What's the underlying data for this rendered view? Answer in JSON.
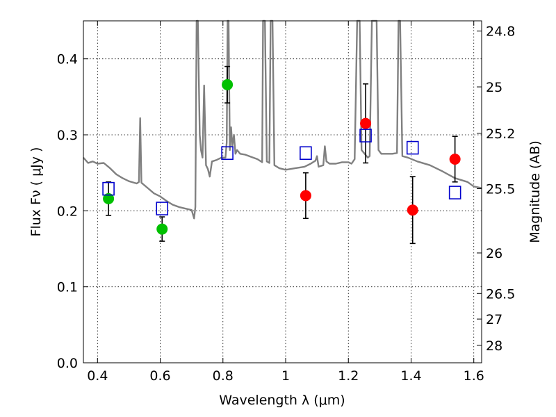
{
  "chart_data": {
    "type": "scatter",
    "xlabel": "Wavelength  λ (μm)",
    "ylabel": "Flux  Fν  ( μJy )",
    "y2label": "Magnitude (AB)",
    "xlim": [
      0.355,
      1.625
    ],
    "ylim": [
      0.0,
      0.45
    ],
    "grid": true,
    "x_ticks": [
      0.4,
      0.6,
      0.8,
      1.0,
      1.2,
      1.4,
      1.6
    ],
    "x_tick_labels": [
      "0.4",
      "0.6",
      "0.8",
      "1",
      "1.2",
      "1.4",
      "1.6"
    ],
    "y_ticks": [
      0.0,
      0.1,
      0.2,
      0.3,
      0.4
    ],
    "y_tick_labels": [
      "0.0",
      "0.1",
      "0.2",
      "0.3",
      "0.4"
    ],
    "y2_ticks": [
      "24.8",
      "25",
      "25.2",
      "25.5",
      "26",
      "26.5",
      "27",
      "28"
    ],
    "colors": {
      "green": "#00c000",
      "red": "#ff0000",
      "blue_square": "#0000cc",
      "spectrum": "#808080",
      "errorbar": "#000000"
    },
    "series": [
      {
        "marker": "circle",
        "color": "#00c000",
        "points": [
          {
            "x": 0.435,
            "y": 0.216,
            "err": 0.022
          },
          {
            "x": 0.606,
            "y": 0.176,
            "err": 0.016
          },
          {
            "x": 0.814,
            "y": 0.366,
            "err": 0.024
          }
        ]
      },
      {
        "marker": "circle",
        "color": "#ff0000",
        "points": [
          {
            "x": 1.064,
            "y": 0.22,
            "err": 0.03
          },
          {
            "x": 1.255,
            "y": 0.315,
            "err": 0.052
          },
          {
            "x": 1.405,
            "y": 0.201,
            "err": 0.044
          },
          {
            "x": 1.54,
            "y": 0.268,
            "err": 0.03
          }
        ]
      },
      {
        "marker": "square-open",
        "color": "#0000cc",
        "points": [
          {
            "x": 0.435,
            "y": 0.229
          },
          {
            "x": 0.606,
            "y": 0.203
          },
          {
            "x": 0.814,
            "y": 0.276
          },
          {
            "x": 1.064,
            "y": 0.276
          },
          {
            "x": 1.255,
            "y": 0.299
          },
          {
            "x": 1.405,
            "y": 0.283
          },
          {
            "x": 1.54,
            "y": 0.224
          }
        ]
      }
    ],
    "spectrum": {
      "color": "#808080",
      "points": [
        [
          0.355,
          0.27
        ],
        [
          0.37,
          0.263
        ],
        [
          0.385,
          0.265
        ],
        [
          0.4,
          0.262
        ],
        [
          0.42,
          0.263
        ],
        [
          0.44,
          0.256
        ],
        [
          0.46,
          0.248
        ],
        [
          0.48,
          0.243
        ],
        [
          0.5,
          0.239
        ],
        [
          0.525,
          0.236
        ],
        [
          0.532,
          0.238
        ],
        [
          0.536,
          0.322
        ],
        [
          0.54,
          0.237
        ],
        [
          0.56,
          0.23
        ],
        [
          0.58,
          0.223
        ],
        [
          0.6,
          0.219
        ],
        [
          0.62,
          0.213
        ],
        [
          0.64,
          0.208
        ],
        [
          0.66,
          0.205
        ],
        [
          0.68,
          0.203
        ],
        [
          0.7,
          0.201
        ],
        [
          0.708,
          0.19
        ],
        [
          0.712,
          0.205
        ],
        [
          0.716,
          0.45
        ],
        [
          0.72,
          0.45
        ],
        [
          0.726,
          0.3
        ],
        [
          0.73,
          0.28
        ],
        [
          0.735,
          0.27
        ],
        [
          0.74,
          0.365
        ],
        [
          0.746,
          0.26
        ],
        [
          0.752,
          0.255
        ],
        [
          0.758,
          0.245
        ],
        [
          0.765,
          0.265
        ],
        [
          0.78,
          0.267
        ],
        [
          0.795,
          0.27
        ],
        [
          0.808,
          0.27
        ],
        [
          0.812,
          0.29
        ],
        [
          0.815,
          0.45
        ],
        [
          0.818,
          0.45
        ],
        [
          0.822,
          0.28
        ],
        [
          0.826,
          0.31
        ],
        [
          0.83,
          0.285
        ],
        [
          0.835,
          0.3
        ],
        [
          0.84,
          0.275
        ],
        [
          0.845,
          0.28
        ],
        [
          0.855,
          0.275
        ],
        [
          0.87,
          0.274
        ],
        [
          0.89,
          0.271
        ],
        [
          0.91,
          0.268
        ],
        [
          0.925,
          0.264
        ],
        [
          0.928,
          0.45
        ],
        [
          0.934,
          0.45
        ],
        [
          0.94,
          0.265
        ],
        [
          0.948,
          0.263
        ],
        [
          0.952,
          0.45
        ],
        [
          0.958,
          0.45
        ],
        [
          0.964,
          0.26
        ],
        [
          0.98,
          0.256
        ],
        [
          1.0,
          0.254
        ],
        [
          1.03,
          0.256
        ],
        [
          1.06,
          0.258
        ],
        [
          1.08,
          0.262
        ],
        [
          1.095,
          0.266
        ],
        [
          1.1,
          0.272
        ],
        [
          1.105,
          0.258
        ],
        [
          1.12,
          0.26
        ],
        [
          1.125,
          0.285
        ],
        [
          1.13,
          0.265
        ],
        [
          1.14,
          0.262
        ],
        [
          1.16,
          0.262
        ],
        [
          1.18,
          0.264
        ],
        [
          1.2,
          0.264
        ],
        [
          1.21,
          0.262
        ],
        [
          1.22,
          0.268
        ],
        [
          1.228,
          0.45
        ],
        [
          1.236,
          0.45
        ],
        [
          1.242,
          0.28
        ],
        [
          1.25,
          0.276
        ],
        [
          1.262,
          0.27
        ],
        [
          1.268,
          0.272
        ],
        [
          1.275,
          0.45
        ],
        [
          1.29,
          0.45
        ],
        [
          1.296,
          0.28
        ],
        [
          1.305,
          0.275
        ],
        [
          1.32,
          0.275
        ],
        [
          1.34,
          0.275
        ],
        [
          1.355,
          0.276
        ],
        [
          1.36,
          0.45
        ],
        [
          1.365,
          0.45
        ],
        [
          1.372,
          0.272
        ],
        [
          1.39,
          0.27
        ],
        [
          1.42,
          0.265
        ],
        [
          1.46,
          0.26
        ],
        [
          1.5,
          0.252
        ],
        [
          1.54,
          0.243
        ],
        [
          1.58,
          0.238
        ],
        [
          1.6,
          0.232
        ],
        [
          1.625,
          0.23
        ]
      ]
    }
  }
}
